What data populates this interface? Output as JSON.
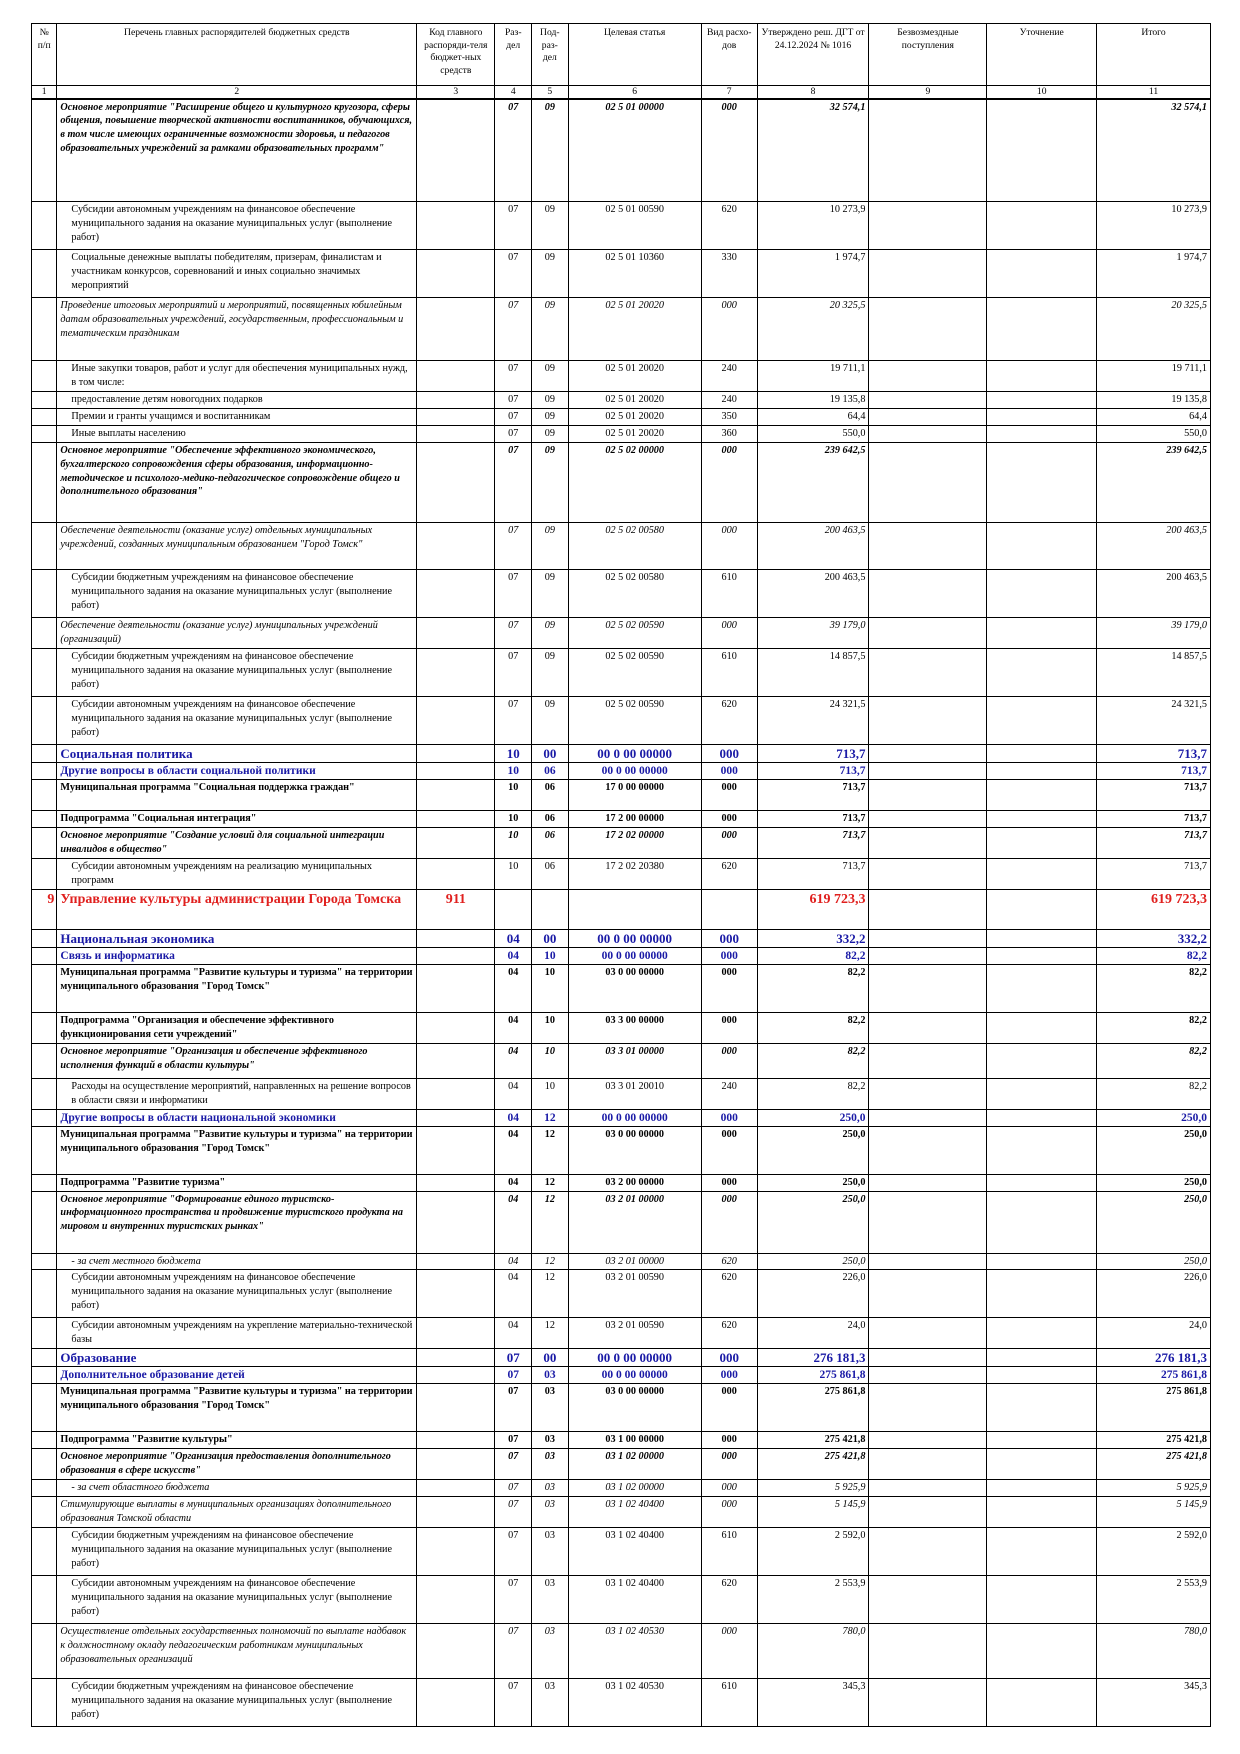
{
  "header": {
    "col1": "№ п/п",
    "col2": "Перечень главных распорядителей бюджетных средств",
    "col3": "Код главного распоряди-теля бюджет-ных средств",
    "col4": "Раз-дел",
    "col5": "Под-раз-дел",
    "col6": "Целевая статья",
    "col7": "Вид расхо-дов",
    "col8": "Утверждено реш. ДГТ от 24.12.2024 № 1016",
    "col9": "Безвозмездные поступления",
    "col10": "Уточнение",
    "col11": "Итого"
  },
  "colnums": [
    "1",
    "2",
    "3",
    "4",
    "5",
    "6",
    "7",
    "8",
    "9",
    "10",
    "11"
  ],
  "rows": [
    {
      "cls": "bi",
      "h": 103,
      "text": "Основное мероприятие \"Расширение общего и культурного кругозора, сферы общения, повышение творческой активности воспитанников, обучающихся, в том числе имеющих ограниченные возможности здоровья, и педагогов образовательных учреждений за рамками образовательных программ\"",
      "razd": "07",
      "podr": "09",
      "cs": "02 5 01 00000",
      "vr": "000",
      "sum": "32 574,1",
      "total": "32 574,1"
    },
    {
      "cls": "",
      "sp": true,
      "h": 55,
      "text": "Субсидии автономным учреждениям на финансовое обеспечение муниципального задания на оказание муниципальных услуг (выполнение работ)",
      "razd": "07",
      "podr": "09",
      "cs": "02 5 01 00590",
      "vr": "620",
      "sum": "10 273,9",
      "total": "10 273,9"
    },
    {
      "cls": "",
      "sp": true,
      "h": 48,
      "text": "Социальные денежные выплаты победителям, призерам, финалистам и участникам конкурсов, соревнований и иных социально значимых мероприятий",
      "razd": "07",
      "podr": "09",
      "cs": "02 5 01 10360",
      "vr": "330",
      "sum": "1 974,7",
      "total": "1 974,7"
    },
    {
      "cls": "it",
      "h": 63,
      "text": "Проведение итоговых мероприятий и мероприятий, посвященных юбилейным датам образовательных учреждений, государственным, профессиональным и тематическим праздникам",
      "razd": "07",
      "podr": "09",
      "cs": "02 5 01 20020",
      "vr": "000",
      "sum": "20 325,5",
      "total": "20 325,5"
    },
    {
      "cls": "",
      "sp": true,
      "h": 31,
      "text": "Иные закупки товаров, работ и услуг для обеспечения муниципальных нужд, в том числе:",
      "razd": "07",
      "podr": "09",
      "cs": "02 5 01 20020",
      "vr": "240",
      "sum": "19 711,1",
      "total": "19 711,1"
    },
    {
      "cls": "",
      "sp": true,
      "h": 16,
      "text": "предоставление детям новогодних подарков",
      "razd": "07",
      "podr": "09",
      "cs": "02 5 01 20020",
      "vr": "240",
      "sum": "19 135,8",
      "total": "19 135,8"
    },
    {
      "cls": "",
      "sp": true,
      "h": 16,
      "text": "Премии и гранты учащимся и воспитанникам",
      "razd": "07",
      "podr": "09",
      "cs": "02 5 01 20020",
      "vr": "350",
      "sum": "64,4",
      "total": "64,4"
    },
    {
      "cls": "",
      "sp": true,
      "h": 16,
      "text": "Иные выплаты населению",
      "razd": "07",
      "podr": "09",
      "cs": "02 5 01 20020",
      "vr": "360",
      "sum": "550,0",
      "total": "550,0"
    },
    {
      "cls": "bi",
      "h": 80,
      "text": "Основное мероприятие \"Обеспечение эффективного экономического, бухгалтерского сопровождения сферы образования, информационно-методическое и психолого-медико-педагогическое сопровождение общего и дополнительного образования\"",
      "razd": "07",
      "podr": "09",
      "cs": "02 5 02 00000",
      "vr": "000",
      "sum": "239 642,5",
      "total": "239 642,5"
    },
    {
      "cls": "it",
      "h": 47,
      "text": "Обеспечение деятельности (оказание услуг) отдельных муниципальных учреждений, созданных муниципальным образованием \"Город Томск\"",
      "razd": "07",
      "podr": "09",
      "cs": "02 5 02 00580",
      "vr": "000",
      "sum": "200 463,5",
      "total": "200 463,5"
    },
    {
      "cls": "",
      "sp": true,
      "h": 48,
      "text": "Субсидии бюджетным учреждениям на финансовое обеспечение муниципального задания на оказание муниципальных услуг (выполнение работ)",
      "razd": "07",
      "podr": "09",
      "cs": "02 5 02 00580",
      "vr": "610",
      "sum": "200 463,5",
      "total": "200 463,5"
    },
    {
      "cls": "it",
      "h": 31,
      "text": "Обеспечение деятельности (оказание услуг) муниципальных учреждений (организаций)",
      "razd": "07",
      "podr": "09",
      "cs": "02 5 02 00590",
      "vr": "000",
      "sum": "39 179,0",
      "total": "39 179,0"
    },
    {
      "cls": "",
      "sp": true,
      "h": 48,
      "text": "Субсидии бюджетным учреждениям на финансовое обеспечение муниципального задания на оказание муниципальных услуг (выполнение работ)",
      "razd": "07",
      "podr": "09",
      "cs": "02 5 02 00590",
      "vr": "610",
      "sum": "14 857,5",
      "total": "14 857,5"
    },
    {
      "cls": "",
      "sp": true,
      "h": 48,
      "text": "Субсидии автономным учреждениям на финансовое обеспечение муниципального задания на оказание муниципальных услуг (выполнение работ)",
      "razd": "07",
      "podr": "09",
      "cs": "02 5 02 00590",
      "vr": "620",
      "sum": "24 321,5",
      "total": "24 321,5"
    },
    {
      "cls": "sec",
      "h": 18,
      "text": "Социальная политика",
      "razd": "10",
      "podr": "00",
      "cs": "00 0 00 00000",
      "vr": "000",
      "sum": "713,7",
      "total": "713,7"
    },
    {
      "cls": "sub",
      "h": 16,
      "text": "Другие вопросы в области социальной политики",
      "razd": "10",
      "podr": "06",
      "cs": "00 0 00 00000",
      "vr": "000",
      "sum": "713,7",
      "total": "713,7"
    },
    {
      "cls": "bo",
      "h": 31,
      "text": "Муниципальная программа \"Социальная поддержка граждан\"",
      "razd": "10",
      "podr": "06",
      "cs": "17 0 00 00000",
      "vr": "000",
      "sum": "713,7",
      "total": "713,7"
    },
    {
      "cls": "bo",
      "h": 16,
      "text": "Подпрограмма \"Социальная интеграция\"",
      "razd": "10",
      "podr": "06",
      "cs": "17 2 00 00000",
      "vr": "000",
      "sum": "713,7",
      "total": "713,7"
    },
    {
      "cls": "bi",
      "h": 31,
      "text": "Основное мероприятие \"Создание условий для социальной интеграции инвалидов в общество\"",
      "razd": "10",
      "podr": "06",
      "cs": "17 2 02 00000",
      "vr": "000",
      "sum": "713,7",
      "total": "713,7"
    },
    {
      "cls": "",
      "sp": true,
      "h": 31,
      "text": "Субсидии автономным учреждениям на реализацию муниципальных программ",
      "razd": "10",
      "podr": "06",
      "cs": "17 2 02 20380",
      "vr": "620",
      "sum": "713,7",
      "total": "713,7"
    },
    {
      "cls": "dept",
      "h": 40,
      "num": "9",
      "text": "Управление культуры администрации Города Томска",
      "code": "911",
      "razd": "",
      "podr": "",
      "cs": "",
      "vr": "",
      "sum": "619 723,3",
      "total": "619 723,3"
    },
    {
      "cls": "sec",
      "h": 18,
      "text": "Национальная экономика",
      "razd": "04",
      "podr": "00",
      "cs": "00 0 00 00000",
      "vr": "000",
      "sum": "332,2",
      "total": "332,2"
    },
    {
      "cls": "sub",
      "h": 16,
      "text": "Связь и информатика",
      "razd": "04",
      "podr": "10",
      "cs": "00 0 00 00000",
      "vr": "000",
      "sum": "82,2",
      "total": "82,2"
    },
    {
      "cls": "bo",
      "h": 48,
      "text": "Муниципальная программа \"Развитие культуры и туризма\" на территории муниципального образования \"Город Томск\"",
      "razd": "04",
      "podr": "10",
      "cs": "03 0 00 00000",
      "vr": "000",
      "sum": "82,2",
      "total": "82,2"
    },
    {
      "cls": "bo",
      "h": 31,
      "text": "Подпрограмма \"Организация и обеспечение эффективного функционирования сети учреждений\"",
      "razd": "04",
      "podr": "10",
      "cs": "03 3 00 00000",
      "vr": "000",
      "sum": "82,2",
      "total": "82,2"
    },
    {
      "cls": "bi",
      "h": 35,
      "text": "Основное мероприятие \"Организация и обеспечение эффективного исполнения функций в области культуры\"",
      "razd": "04",
      "podr": "10",
      "cs": "03 3 01 00000",
      "vr": "000",
      "sum": "82,2",
      "total": "82,2"
    },
    {
      "cls": "",
      "sp": true,
      "h": 31,
      "text": "Расходы на осуществление мероприятий, направленных на решение вопросов в области связи и информатики",
      "razd": "04",
      "podr": "10",
      "cs": "03 3 01 20010",
      "vr": "240",
      "sum": "82,2",
      "total": "82,2"
    },
    {
      "cls": "sub",
      "h": 16,
      "text": "Другие вопросы в области национальной экономики",
      "razd": "04",
      "podr": "12",
      "cs": "00 0 00 00000",
      "vr": "000",
      "sum": "250,0",
      "total": "250,0"
    },
    {
      "cls": "bo",
      "h": 48,
      "text": "Муниципальная программа \"Развитие культуры и туризма\" на территории муниципального образования \"Город Томск\"",
      "razd": "04",
      "podr": "12",
      "cs": "03 0 00 00000",
      "vr": "000",
      "sum": "250,0",
      "total": "250,0"
    },
    {
      "cls": "bo",
      "h": 16,
      "text": "Подпрограмма \"Развитие туризма\"",
      "razd": "04",
      "podr": "12",
      "cs": "03 2 00 00000",
      "vr": "000",
      "sum": "250,0",
      "total": "250,0"
    },
    {
      "cls": "bi",
      "h": 62,
      "text": "Основное мероприятие \"Формирование единого туристско-информационного пространства и продвижение туристского продукта на мировом и внутренних туристских рынках\"",
      "razd": "04",
      "podr": "12",
      "cs": "03 2 01 00000",
      "vr": "000",
      "sum": "250,0",
      "total": "250,0"
    },
    {
      "cls": "it",
      "sp": true,
      "h": 16,
      "text": "- за счет местного бюджета",
      "razd": "04",
      "podr": "12",
      "cs": "03 2 01 00000",
      "vr": "620",
      "sum": "250,0",
      "total": "250,0"
    },
    {
      "cls": "",
      "sp": true,
      "h": 48,
      "text": "Субсидии автономным учреждениям на финансовое обеспечение муниципального задания на оказание муниципальных услуг (выполнение работ)",
      "razd": "04",
      "podr": "12",
      "cs": "03 2 01 00590",
      "vr": "620",
      "sum": "226,0",
      "total": "226,0"
    },
    {
      "cls": "",
      "sp": true,
      "h": 31,
      "text": "Субсидии автономным учреждениям на укрепление материально-технической базы",
      "razd": "04",
      "podr": "12",
      "cs": "03 2 01 00590",
      "vr": "620",
      "sum": "24,0",
      "total": "24,0"
    },
    {
      "cls": "sec",
      "h": 18,
      "text": "Образование",
      "razd": "07",
      "podr": "00",
      "cs": "00 0 00 00000",
      "vr": "000",
      "sum": "276 181,3",
      "total": "276 181,3"
    },
    {
      "cls": "sub",
      "h": 16,
      "text": "Дополнительное образование детей",
      "razd": "07",
      "podr": "03",
      "cs": "00 0 00 00000",
      "vr": "000",
      "sum": "275 861,8",
      "total": "275 861,8"
    },
    {
      "cls": "bo",
      "h": 48,
      "text": "Муниципальная программа \"Развитие культуры и туризма\" на территории муниципального образования \"Город Томск\"",
      "razd": "07",
      "podr": "03",
      "cs": "03 0 00 00000",
      "vr": "000",
      "sum": "275 861,8",
      "total": "275 861,8"
    },
    {
      "cls": "bo",
      "h": 16,
      "text": "Подпрограмма \"Развитие культуры\"",
      "razd": "07",
      "podr": "03",
      "cs": "03 1 00 00000",
      "vr": "000",
      "sum": "275 421,8",
      "total": "275 421,8"
    },
    {
      "cls": "bi",
      "h": 31,
      "text": "Основное мероприятие \"Организация предоставления дополнительного образования в сфере искусств\"",
      "razd": "07",
      "podr": "03",
      "cs": "03 1 02 00000",
      "vr": "000",
      "sum": "275 421,8",
      "total": "275 421,8"
    },
    {
      "cls": "it",
      "sp": true,
      "h": 16,
      "text": "- за счет областного бюджета",
      "razd": "07",
      "podr": "03",
      "cs": "03 1 02 00000",
      "vr": "000",
      "sum": "5 925,9",
      "total": "5 925,9"
    },
    {
      "cls": "it",
      "h": 31,
      "text": "Стимулирующие выплаты в муниципальных организациях дополнительного образования Томской области",
      "razd": "07",
      "podr": "03",
      "cs": "03 1 02 40400",
      "vr": "000",
      "sum": "5 145,9",
      "total": "5 145,9"
    },
    {
      "cls": "",
      "sp": true,
      "h": 48,
      "text": "Субсидии бюджетным учреждениям на финансовое обеспечение муниципального задания на оказание муниципальных услуг (выполнение работ)",
      "razd": "07",
      "podr": "03",
      "cs": "03 1 02 40400",
      "vr": "610",
      "sum": "2 592,0",
      "total": "2 592,0"
    },
    {
      "cls": "",
      "sp": true,
      "h": 48,
      "text": "Субсидии автономным учреждениям на финансовое обеспечение муниципального задания на оказание муниципальных услуг (выполнение работ)",
      "razd": "07",
      "podr": "03",
      "cs": "03 1 02 40400",
      "vr": "620",
      "sum": "2 553,9",
      "total": "2 553,9"
    },
    {
      "cls": "it",
      "h": 55,
      "text": "Осуществление отдельных государственных полномочий по выплате надбавок к должностному окладу педагогическим работникам муниципальных образовательных организаций",
      "razd": "07",
      "podr": "03",
      "cs": "03 1 02 40530",
      "vr": "000",
      "sum": "780,0",
      "total": "780,0"
    },
    {
      "cls": "",
      "sp": true,
      "h": 48,
      "text": "Субсидии бюджетным учреждениям на финансовое обеспечение муниципального задания на оказание муниципальных услуг (выполнение работ)",
      "razd": "07",
      "podr": "03",
      "cs": "03 1 02 40530",
      "vr": "610",
      "sum": "345,3",
      "total": "345,3"
    }
  ]
}
